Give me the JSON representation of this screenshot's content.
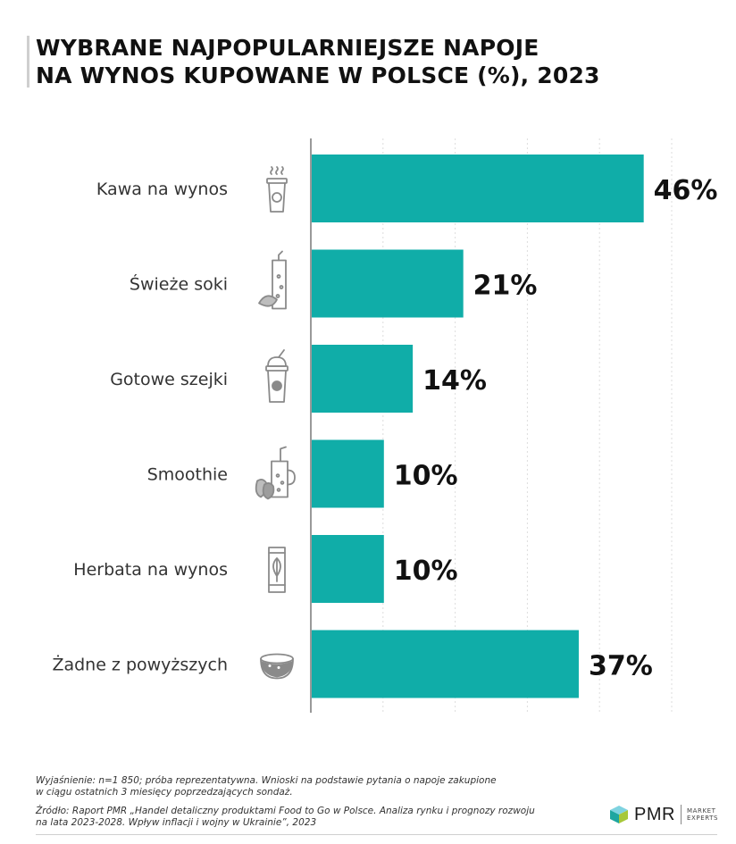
{
  "title": {
    "line1": "WYBRANE NAJPOPULARNIEJSZE NAPOJE",
    "line2": "NA WYNOS KUPOWANE W POLSCE (%), 2023"
  },
  "chart_data": {
    "type": "bar",
    "orientation": "horizontal",
    "title": "WYBRANE NAJPOPULARNIEJSZE NAPOJE NA WYNOS KUPOWANE W POLSCE (%), 2023",
    "categories": [
      "Kawa na wynos",
      "Świeże soki",
      "Gotowe szejki",
      "Smoothie",
      "Herbata na wynos",
      "Żadne z powyższych"
    ],
    "values": [
      46,
      21,
      14,
      10,
      10,
      37
    ],
    "data_labels": [
      "46%",
      "21%",
      "14%",
      "10%",
      "10%",
      "37%"
    ],
    "icons": [
      "coffee-cup-icon",
      "juice-glass-icon",
      "shake-cup-icon",
      "smoothie-jar-icon",
      "tea-cup-icon",
      "bowl-icon"
    ],
    "xlim": [
      0,
      50
    ],
    "grid": true,
    "bar_color": "#10ADA8"
  },
  "notes": {
    "explanation_line1": "Wyjaśnienie: n=1 850; próba reprezentatywna. Wnioski na podstawie pytania o napoje zakupione",
    "explanation_line2": "w ciągu ostatnich 3 miesięcy poprzedzających sondaż.",
    "source_line1": "Źródło: Raport PMR „Handel detaliczny produktami Food to Go w Polsce. Analiza rynku i prognozy rozwoju",
    "source_line2": "na lata 2023-2028. Wpływ inflacji i wojny w Ukrainie”, 2023"
  },
  "logo": {
    "name": "PMR",
    "sub1": "MARKET",
    "sub2": "EXPERTS"
  },
  "colors": {
    "bar": "#10ADA8",
    "icon": "#8a8a8a",
    "axis": "#999999",
    "grid": "#dddddd"
  }
}
